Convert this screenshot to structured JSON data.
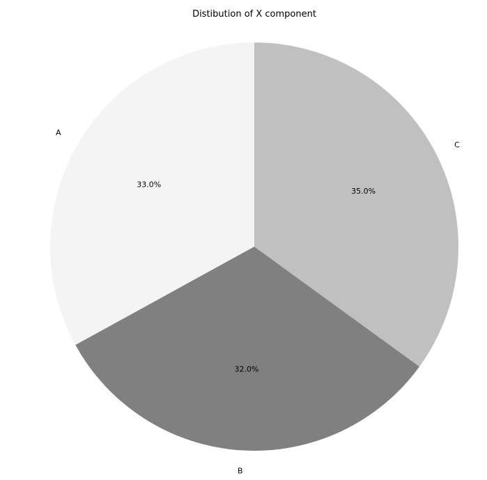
{
  "chart_data": {
    "type": "pie",
    "title": "Distibution of X component",
    "categories": [
      "A",
      "B",
      "C"
    ],
    "values": [
      33.0,
      32.0,
      35.0
    ],
    "percent_labels": [
      "33.0%",
      "32.0%",
      "35.0%"
    ],
    "colors": [
      "#f4f4f4",
      "#808080",
      "#c0c0c0"
    ],
    "start_angle_deg": 90,
    "direction": "counterclockwise",
    "legend": "none"
  }
}
